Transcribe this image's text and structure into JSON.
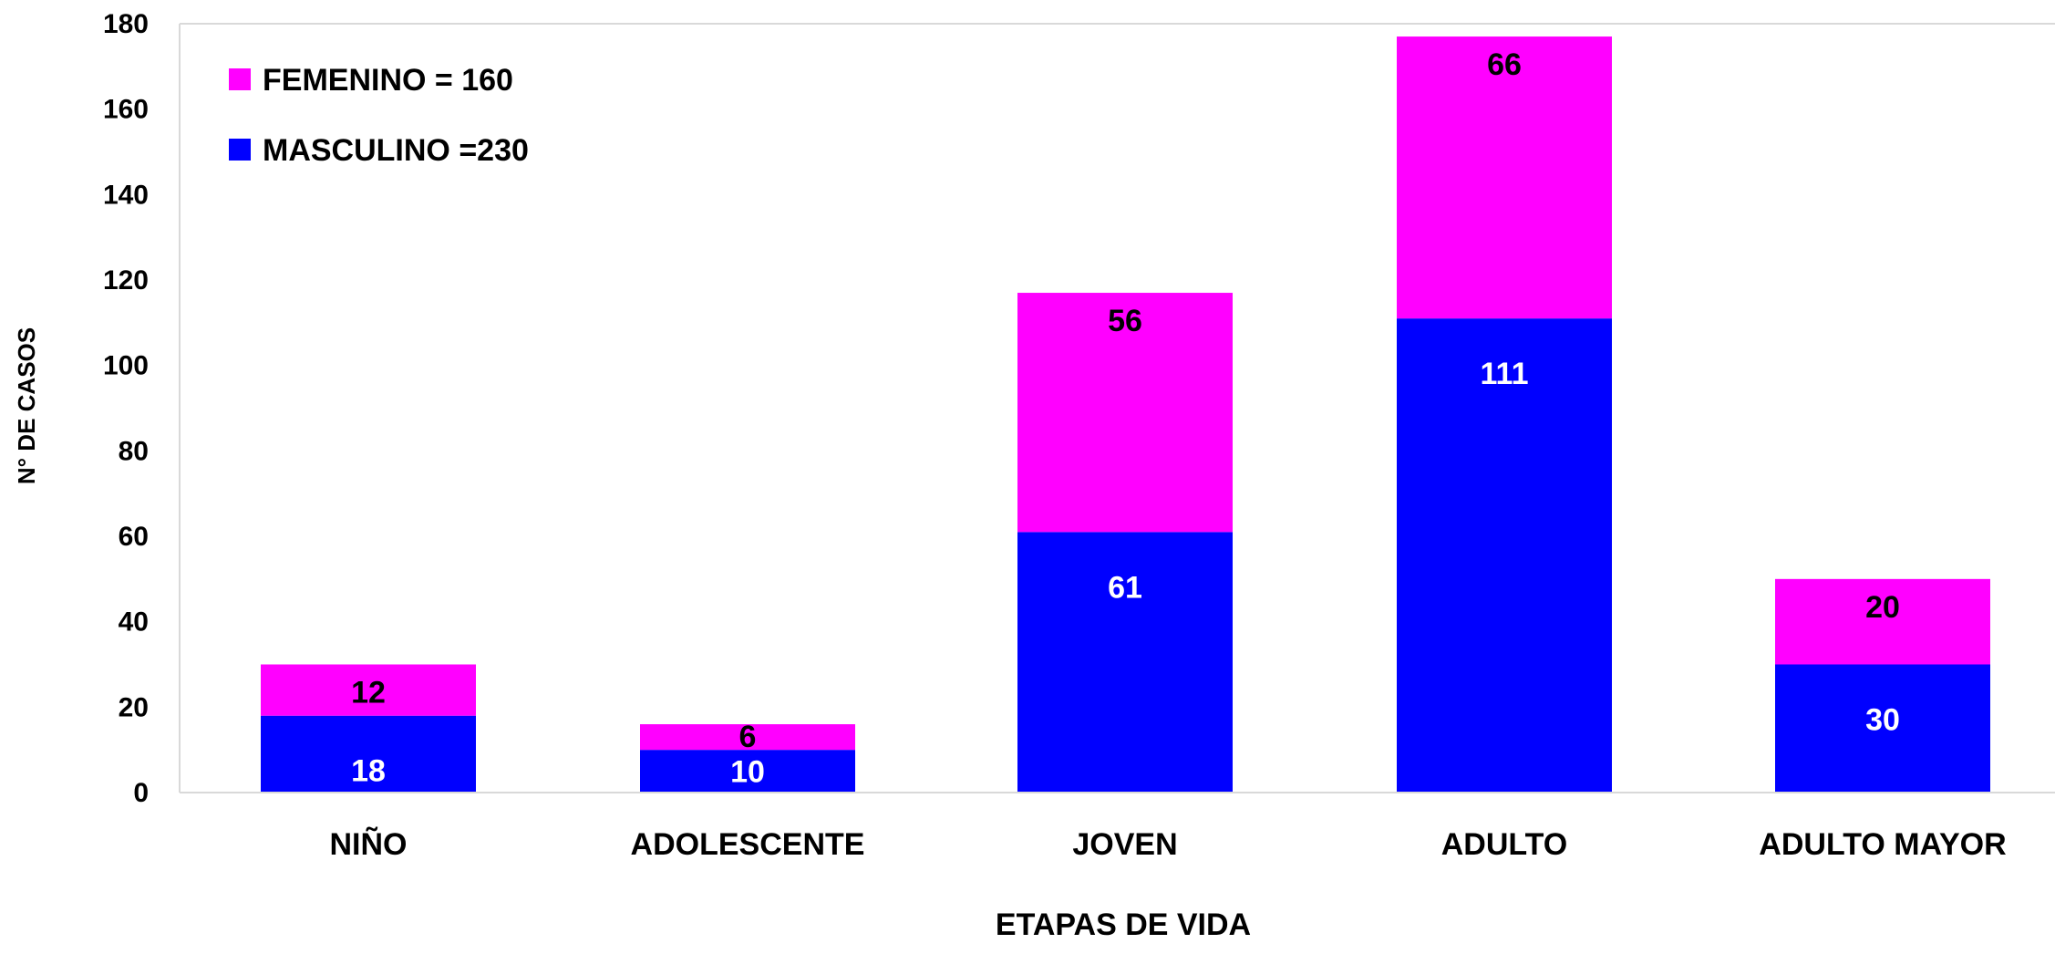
{
  "chart_data": {
    "type": "bar",
    "stacked": true,
    "title": "",
    "xlabel": "ETAPAS DE VIDA",
    "ylabel": "N° DE CASOS",
    "categories": [
      "NIÑO",
      "ADOLESCENTE",
      "JOVEN",
      "ADULTO",
      "ADULTO MAYOR"
    ],
    "ylim": [
      0,
      180
    ],
    "yticks": [
      0,
      20,
      40,
      60,
      80,
      100,
      120,
      140,
      160,
      180
    ],
    "grid": false,
    "legend_position": "top-left",
    "series": [
      {
        "name": "MASCULINO",
        "legend_label": "MASCULINO =230",
        "color": "#0000ff",
        "label_color": "#ffffff",
        "values": [
          18,
          10,
          61,
          111,
          30
        ]
      },
      {
        "name": "FEMENINO",
        "legend_label": "FEMENINO = 160",
        "color": "#ff00ff",
        "label_color": "#000000",
        "values": [
          12,
          6,
          56,
          66,
          20
        ]
      }
    ]
  }
}
